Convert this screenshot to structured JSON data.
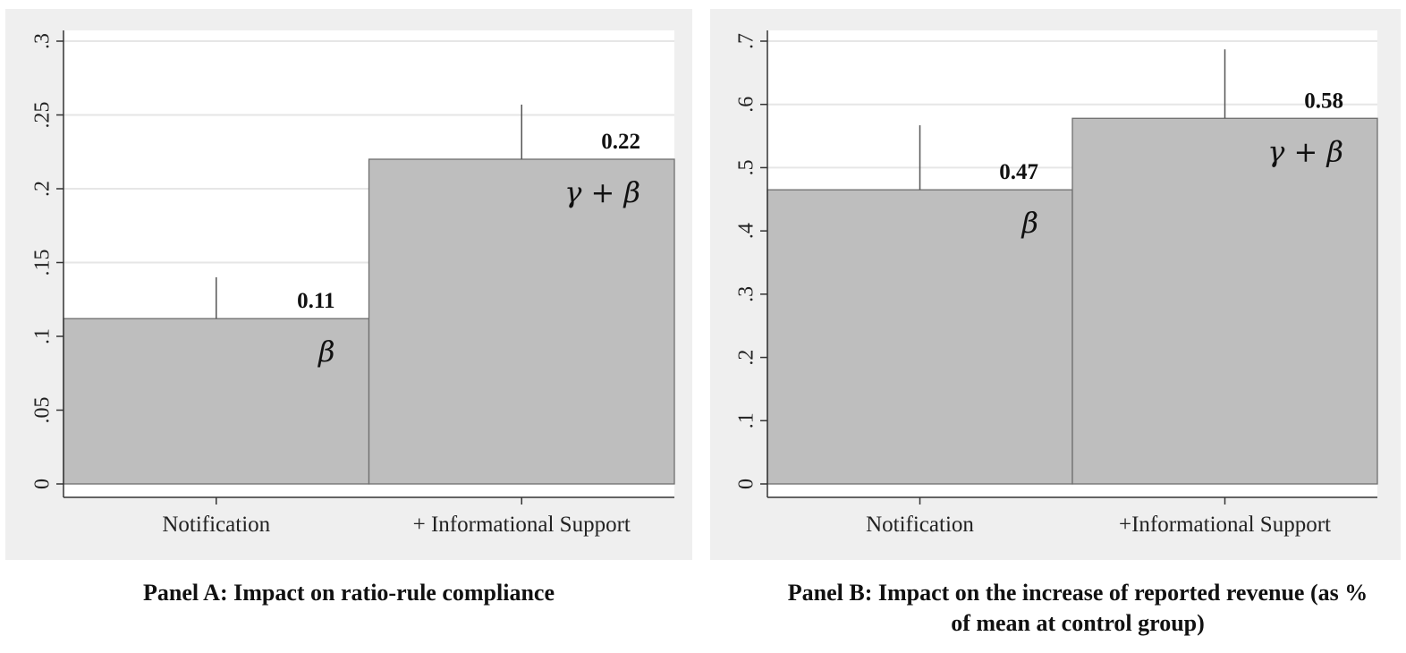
{
  "chart_data": [
    {
      "id": "panelA",
      "type": "bar",
      "categories": [
        "Notification",
        "+ Informational Support"
      ],
      "values": [
        0.112,
        0.22
      ],
      "ci_upper": [
        0.14,
        0.257
      ],
      "value_labels": [
        "0.11",
        "0.22"
      ],
      "coef_labels": [
        "β",
        "γ + β"
      ],
      "ylim": [
        0,
        0.3
      ],
      "yticks": [
        0,
        0.05,
        0.1,
        0.15,
        0.2,
        0.25,
        0.3
      ],
      "ytick_labels": [
        "0",
        ".05",
        ".1",
        ".15",
        ".2",
        ".25",
        ".3"
      ],
      "grid": true,
      "bar_color": "#bebebe",
      "caption": "Panel A: Impact on ratio-rule compliance"
    },
    {
      "id": "panelB",
      "type": "bar",
      "categories": [
        "Notification",
        "+Informational Support"
      ],
      "values": [
        0.465,
        0.578
      ],
      "ci_upper": [
        0.567,
        0.687
      ],
      "value_labels": [
        "0.47",
        "0.58"
      ],
      "coef_labels": [
        "β",
        "γ + β"
      ],
      "ylim": [
        0,
        0.7
      ],
      "yticks": [
        0,
        0.1,
        0.2,
        0.3,
        0.4,
        0.5,
        0.6,
        0.7
      ],
      "ytick_labels": [
        "0",
        ".1",
        ".2",
        ".3",
        ".4",
        ".5",
        ".6",
        ".7"
      ],
      "grid": true,
      "bar_color": "#bebebe",
      "caption": "Panel B: Impact on the increase of reported revenue (as % of mean at control group)"
    }
  ]
}
